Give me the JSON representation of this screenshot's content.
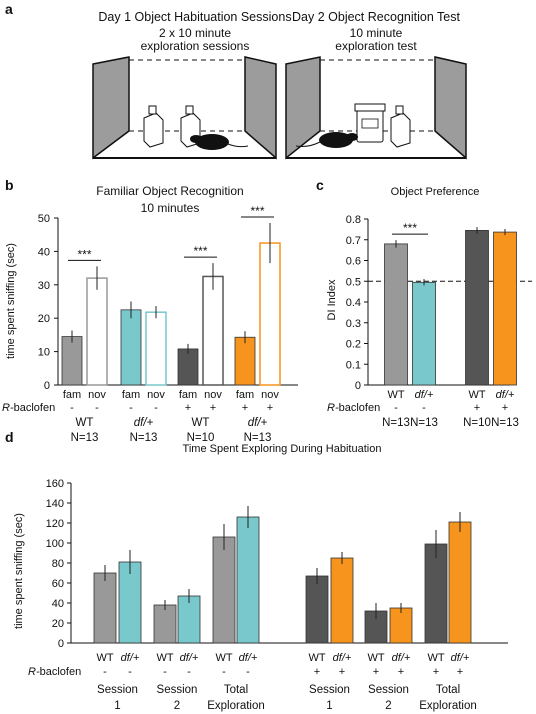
{
  "panels": {
    "a": {
      "letter": "a",
      "day1_title": "Day 1 Object Habituation Sessions",
      "day1_sub1": "2 x 10 minute",
      "day1_sub2": "exploration sessions",
      "day2_title": "Day 2 Object Recognition Test",
      "day2_sub1": "10 minute",
      "day2_sub2": "exploration test"
    },
    "b": {
      "letter": "b",
      "title1": "Familiar Object Recognition",
      "title2": "10 minutes",
      "sig": "***",
      "baclofen_label": "baclofen",
      "baclofen_prefix": "R-",
      "groups": [
        {
          "genotype": "WT",
          "n": "N=13",
          "baclofen": "-"
        },
        {
          "genotype": "df/+",
          "n": "N=13",
          "baclofen": "-"
        },
        {
          "genotype": "WT",
          "n": "N=10",
          "baclofen": "+"
        },
        {
          "genotype": "df/+",
          "n": "N=13",
          "baclofen": "+"
        }
      ],
      "fam_label": "fam",
      "nov_label": "nov"
    },
    "c": {
      "letter": "c",
      "title": "Object Preference",
      "sig": "***",
      "baclofen_prefix": "R-",
      "baclofen_label": "baclofen",
      "groups": [
        {
          "genotype": "WT",
          "n": "N=13",
          "baclofen": "-"
        },
        {
          "genotype": "df/+",
          "n": "N=13",
          "baclofen": "-"
        },
        {
          "genotype": "WT",
          "n": "N=10",
          "baclofen": "+"
        },
        {
          "genotype": "df/+",
          "n": "N=13",
          "baclofen": "+"
        }
      ]
    },
    "d": {
      "letter": "d",
      "title": "Time Spent Exploring During Habituation",
      "baclofen_prefix": "R-",
      "baclofen_label": "baclofen",
      "session_labels": [
        {
          "l1": "Session",
          "l2": "1"
        },
        {
          "l1": "Session",
          "l2": "2"
        },
        {
          "l1": "Total",
          "l2": "Exploration"
        },
        {
          "l1": "Session",
          "l2": "1"
        },
        {
          "l1": "Session",
          "l2": "2"
        },
        {
          "l1": "Total",
          "l2": "Exploration"
        }
      ]
    }
  },
  "chart_data": [
    {
      "type": "bar",
      "title": "Familiar Object Recognition",
      "subtitle": "10 minutes",
      "ylabel": "time spent sniffing (sec)",
      "ylim": [
        0,
        50
      ],
      "yticks": [
        0,
        10,
        20,
        30,
        40,
        50
      ],
      "categories": [
        "fam",
        "nov",
        "fam",
        "nov",
        "fam",
        "nov",
        "fam",
        "nov"
      ],
      "values": [
        14.5,
        32,
        22.5,
        21.8,
        10.8,
        32.5,
        14.3,
        42.5
      ],
      "errors": [
        1.8,
        3.5,
        2.5,
        1.8,
        1.5,
        4.0,
        1.8,
        6.0
      ],
      "styles": [
        "solid",
        "open",
        "solid",
        "open",
        "solid",
        "open",
        "solid",
        "open"
      ],
      "colors": [
        "#999999",
        "#999999",
        "#78c8cc",
        "#78c8cc",
        "#555555",
        "#555555",
        "#f7941d",
        "#f7941d"
      ],
      "significance": [
        [
          0,
          1,
          "***"
        ],
        [
          4,
          5,
          "***"
        ],
        [
          6,
          7,
          "***"
        ]
      ]
    },
    {
      "type": "bar",
      "title": "Object Preference",
      "ylabel": "DI Index",
      "ylim": [
        0,
        0.8
      ],
      "yticks": [
        "0",
        "0.1",
        "0.2",
        "0.3",
        "0.4",
        "0.5",
        "0.6",
        "0.7",
        "0.8"
      ],
      "categories": [
        "WT",
        "df/+",
        "WT",
        "df/+"
      ],
      "values": [
        0.68,
        0.495,
        0.745,
        0.737
      ],
      "errors": [
        0.018,
        0.015,
        0.016,
        0.015
      ],
      "colors": [
        "#999999",
        "#78c8cc",
        "#555555",
        "#f7941d"
      ],
      "reference_line": 0.5,
      "significance": [
        [
          0,
          1,
          "***"
        ]
      ]
    },
    {
      "type": "bar",
      "title": "Time Spent Exploring During Habituation",
      "ylabel": "time spent sniffing (sec)",
      "ylim": [
        0,
        160
      ],
      "yticks": [
        0,
        20,
        40,
        60,
        80,
        100,
        120,
        140,
        160
      ],
      "categories": [
        "WT",
        "df/+",
        "WT",
        "df/+",
        "WT",
        "df/+",
        "WT",
        "df/+",
        "WT",
        "df/+",
        "WT",
        "df/+"
      ],
      "baclofen": [
        "-",
        "-",
        "-",
        "-",
        "-",
        "-",
        "+",
        "+",
        "+",
        "+",
        "+",
        "+"
      ],
      "values": [
        70,
        81,
        38,
        47,
        106,
        126,
        67,
        85,
        32,
        35,
        99,
        121
      ],
      "errors": [
        8,
        12,
        5,
        7,
        13,
        11,
        8,
        6,
        8,
        5,
        14,
        10
      ],
      "colors": [
        "#999999",
        "#78c8cc",
        "#999999",
        "#78c8cc",
        "#999999",
        "#78c8cc",
        "#555555",
        "#f7941d",
        "#555555",
        "#f7941d",
        "#555555",
        "#f7941d"
      ]
    }
  ]
}
